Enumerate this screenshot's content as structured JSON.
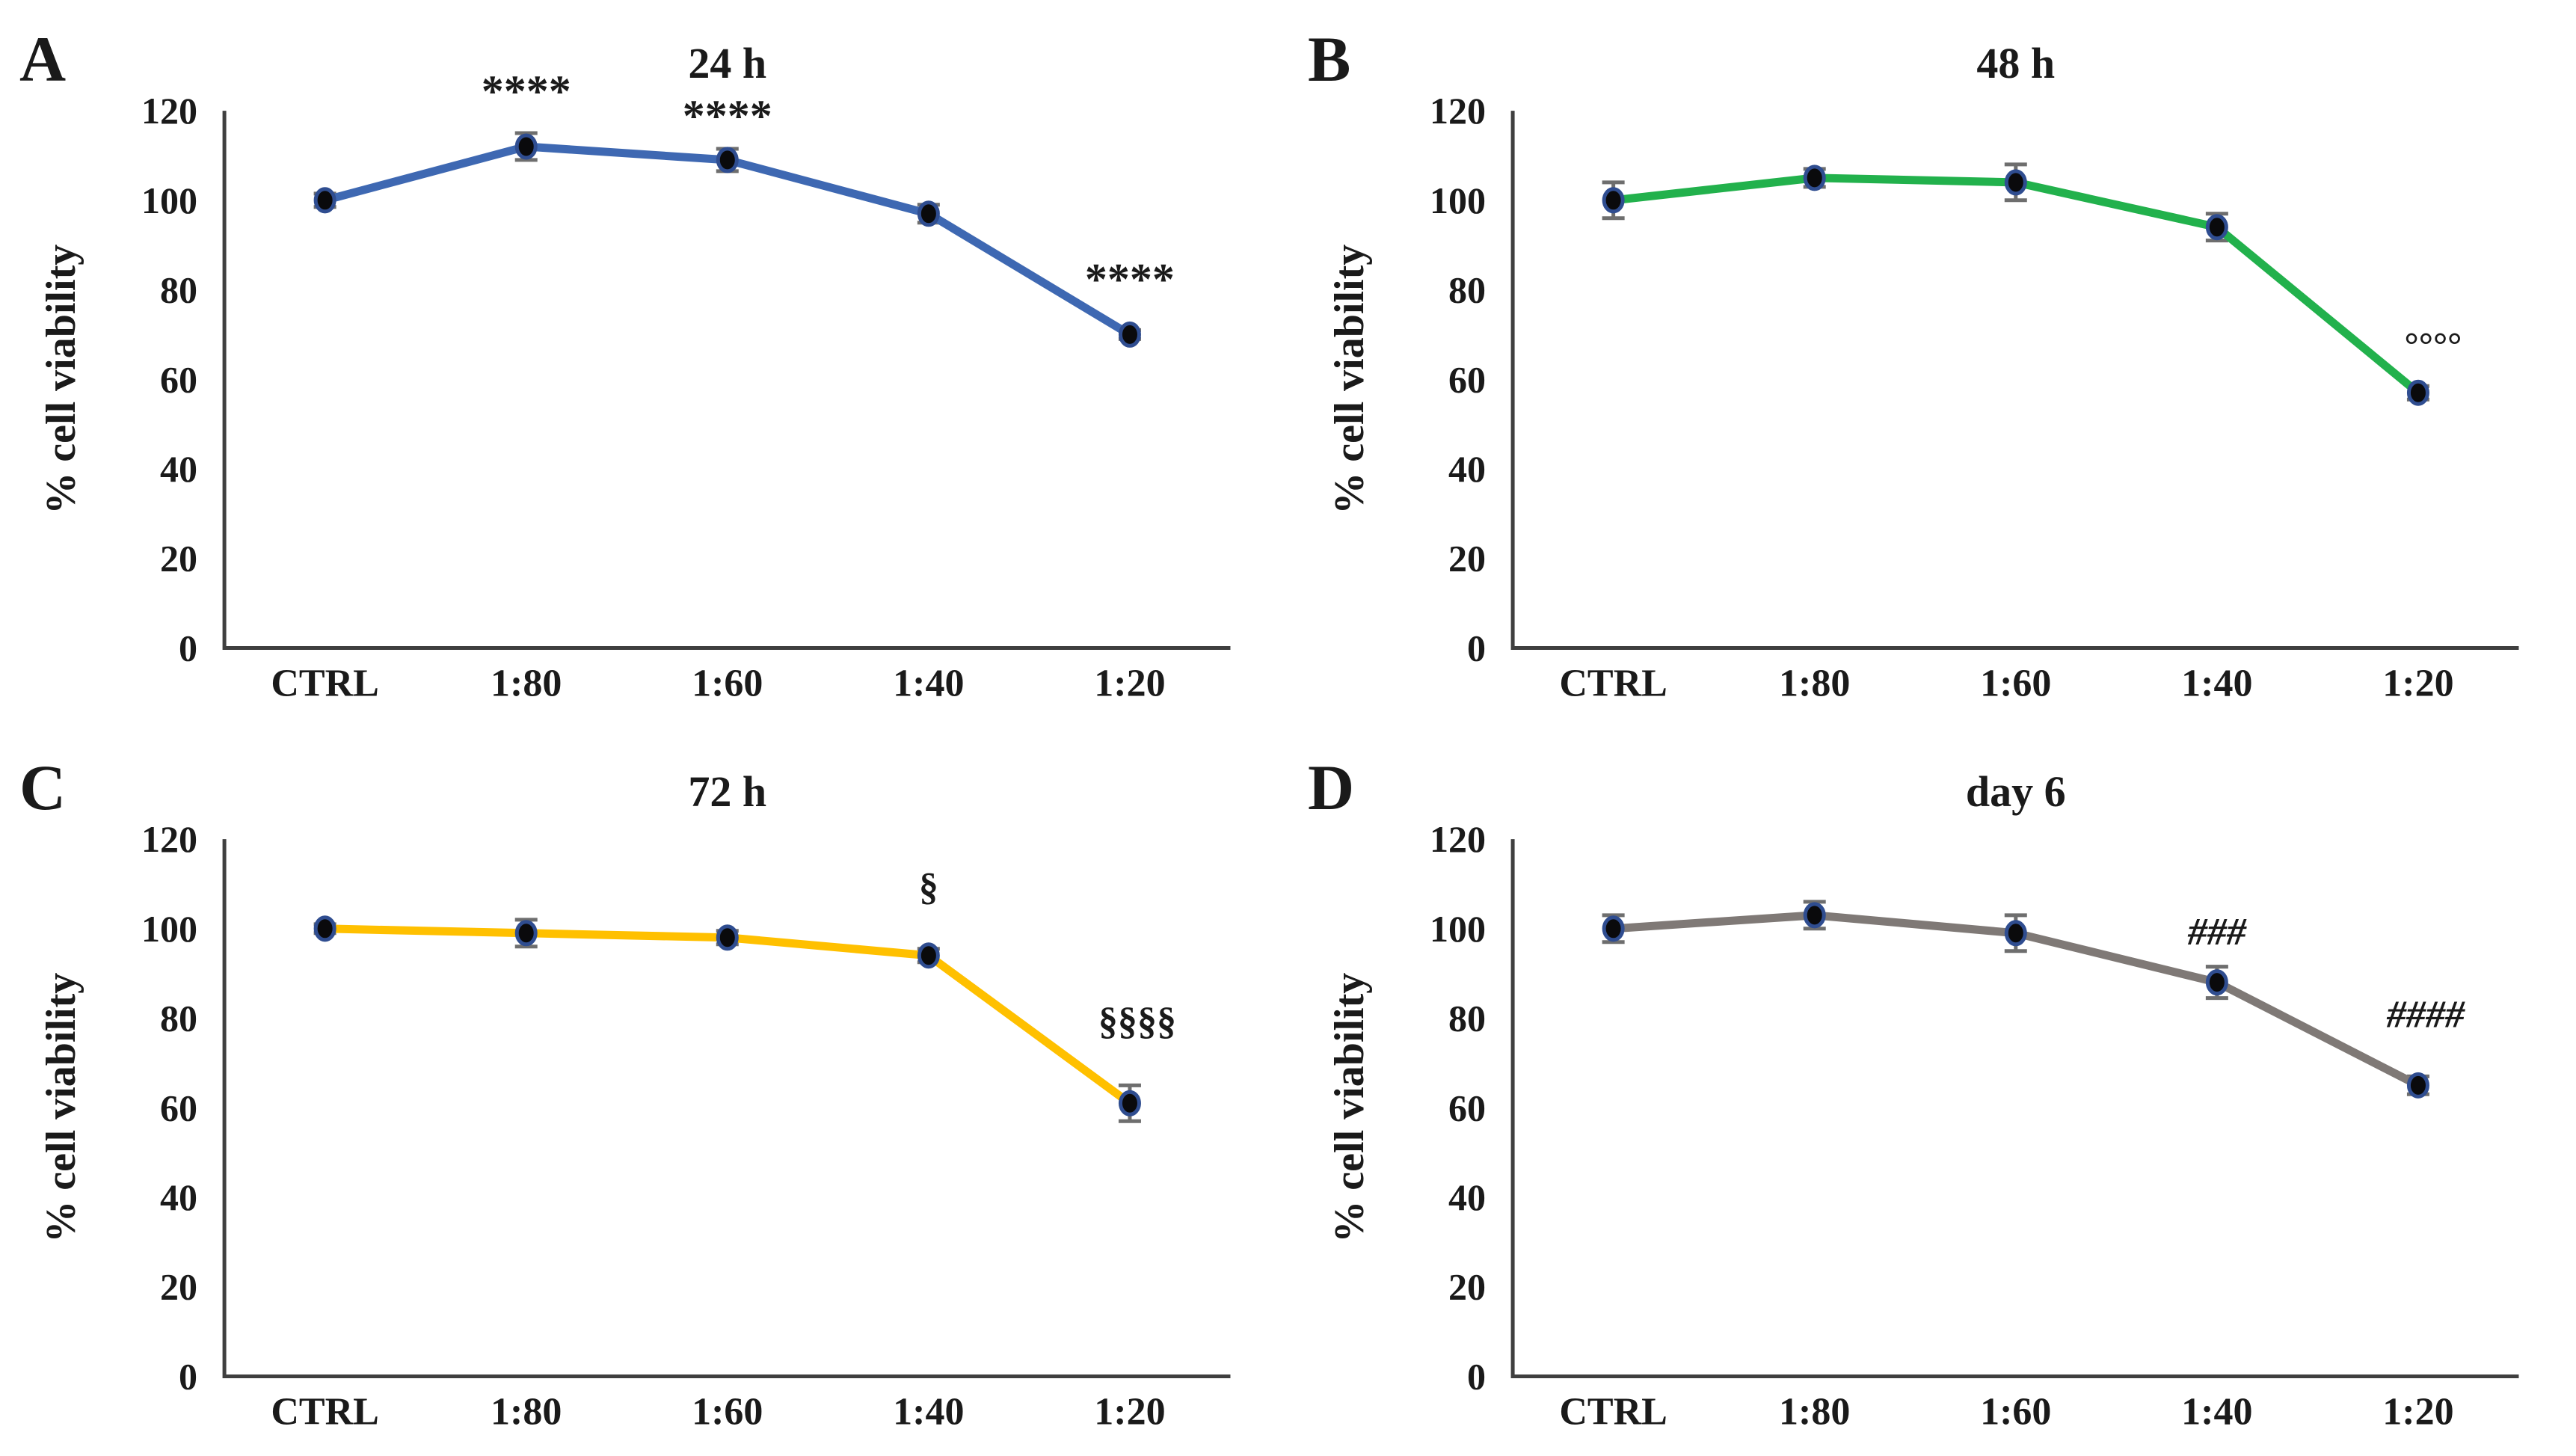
{
  "figure": {
    "background": "#ffffff",
    "text_color": "#1a1a1a",
    "axis_color": "#3f3f3f",
    "error_bar_color": "#6e6e6e",
    "marker_fill": "#0a0a0c",
    "marker_stroke": "#2f4d90"
  },
  "chart_data": [
    {
      "type": "line",
      "panel_letter": "A",
      "title": "24 h",
      "ylabel": "% cell viability",
      "xlabel": "",
      "categories": [
        "CTRL",
        "1:80",
        "1:60",
        "1:40",
        "1:20"
      ],
      "values": [
        100,
        112,
        109,
        97,
        70
      ],
      "errors": [
        1.5,
        3,
        2.5,
        2,
        1
      ],
      "ylim": [
        0,
        120
      ],
      "yticks": [
        0,
        20,
        40,
        60,
        80,
        100,
        120
      ],
      "grid": "off",
      "legend": "none",
      "line_color": "#3E68B2",
      "annotations": [
        {
          "point": 1,
          "text": "****",
          "y": 121,
          "dx": 0,
          "style": "star"
        },
        {
          "point": 2,
          "text": "****",
          "y": 115.5,
          "dx": 0,
          "style": "star"
        },
        {
          "point": 4,
          "text": "****",
          "y": 79,
          "dx": 0,
          "style": "star"
        }
      ]
    },
    {
      "type": "line",
      "panel_letter": "B",
      "title": "48 h",
      "ylabel": "% cell viability",
      "xlabel": "",
      "categories": [
        "CTRL",
        "1:80",
        "1:60",
        "1:40",
        "1:20"
      ],
      "values": [
        100,
        105,
        104,
        94,
        57
      ],
      "errors": [
        4,
        2,
        4,
        3,
        1.5
      ],
      "ylim": [
        0,
        120
      ],
      "yticks": [
        0,
        20,
        40,
        60,
        80,
        100,
        120
      ],
      "grid": "off",
      "legend": "none",
      "line_color": "#22B14C",
      "annotations": [
        {
          "point": 4,
          "text": "°°°°",
          "y": 65,
          "dx": 20,
          "style": "circle"
        }
      ]
    },
    {
      "type": "line",
      "panel_letter": "C",
      "title": "72 h",
      "ylabel": "% cell viability",
      "xlabel": "",
      "categories": [
        "CTRL",
        "1:80",
        "1:60",
        "1:40",
        "1:20"
      ],
      "values": [
        100,
        99,
        98,
        94,
        61
      ],
      "errors": [
        1,
        3,
        1.5,
        1.5,
        4
      ],
      "ylim": [
        0,
        120
      ],
      "yticks": [
        0,
        20,
        40,
        60,
        80,
        100,
        120
      ],
      "grid": "off",
      "legend": "none",
      "line_color": "#FFC000",
      "annotations": [
        {
          "point": 3,
          "text": "§",
          "y": 106.5,
          "dx": 0,
          "style": "section"
        },
        {
          "point": 4,
          "text": "§§§§",
          "y": 76.5,
          "dx": 10,
          "style": "section"
        }
      ]
    },
    {
      "type": "line",
      "panel_letter": "D",
      "title": "day 6",
      "ylabel": "% cell viability",
      "xlabel": "",
      "categories": [
        "CTRL",
        "1:80",
        "1:60",
        "1:40",
        "1:20"
      ],
      "values": [
        100,
        103,
        99,
        88,
        65
      ],
      "errors": [
        3,
        3,
        4,
        3.5,
        2
      ],
      "ylim": [
        0,
        120
      ],
      "yticks": [
        0,
        20,
        40,
        60,
        80,
        100,
        120
      ],
      "grid": "off",
      "legend": "none",
      "line_color": "#7F7976",
      "annotations": [
        {
          "point": 3,
          "text": "###",
          "y": 96.5,
          "dx": 0,
          "style": "hash"
        },
        {
          "point": 4,
          "text": "####",
          "y": 78,
          "dx": 10,
          "style": "hash"
        }
      ]
    }
  ]
}
